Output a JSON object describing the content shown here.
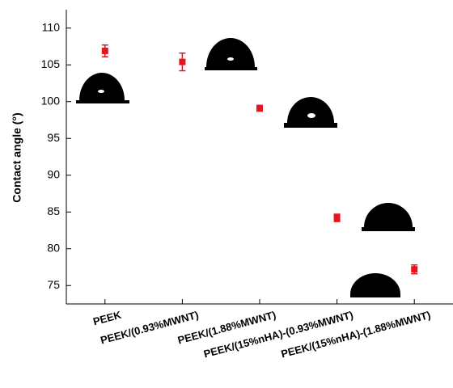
{
  "chart_data": {
    "type": "scatter",
    "y_label": "Contact angle (°)",
    "categories": [
      "PEEK",
      "PEEK/(0.93%MWNT)",
      "PEEK/(1.88%MWNT)",
      "PEEK/(15%nHA)-(0.93%MWNT)",
      "PEEK/(15%nHA)-(1.88%MWNT)"
    ],
    "values": [
      106.9,
      105.4,
      99.1,
      84.2,
      77.2
    ],
    "errors": [
      0.8,
      1.2,
      0.4,
      0.5,
      0.6
    ],
    "color": "#e8141c",
    "ylim": [
      72.5,
      112.5
    ],
    "yticks": [
      75,
      80,
      85,
      90,
      95,
      100,
      105,
      110
    ]
  }
}
